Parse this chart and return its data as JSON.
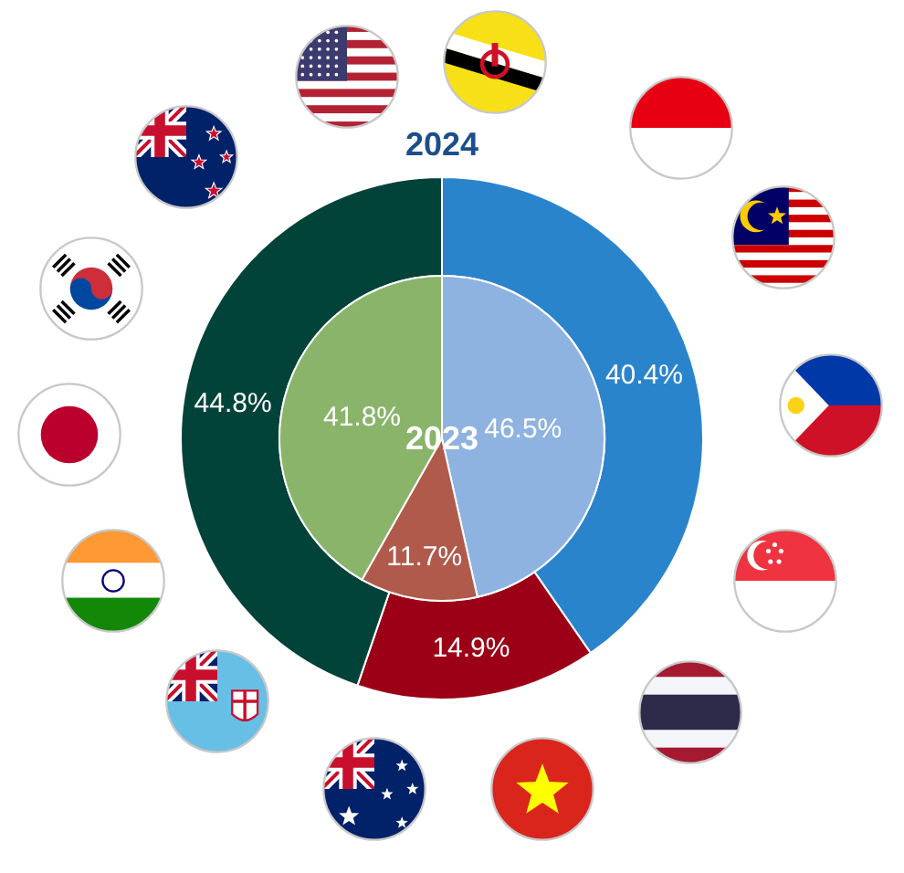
{
  "chart_data": [
    {
      "type": "donut",
      "title": "2024",
      "categories": [
        null,
        null,
        null
      ],
      "values": [
        40.4,
        14.9,
        44.8
      ],
      "colors": [
        "#2a84cc",
        "#9b0016",
        "#024339"
      ],
      "value_labels": [
        "40.4%",
        "14.9%",
        "44.8%"
      ],
      "legend": false
    },
    {
      "type": "pie",
      "title": "2023",
      "categories": [
        null,
        null,
        null
      ],
      "values": [
        46.5,
        11.7,
        41.8
      ],
      "colors": [
        "#8fb3e0",
        "#b05a4c",
        "#8ab46a"
      ],
      "value_labels": [
        "46.5%",
        "11.7%",
        "41.8%"
      ],
      "legend": false
    }
  ]
}
